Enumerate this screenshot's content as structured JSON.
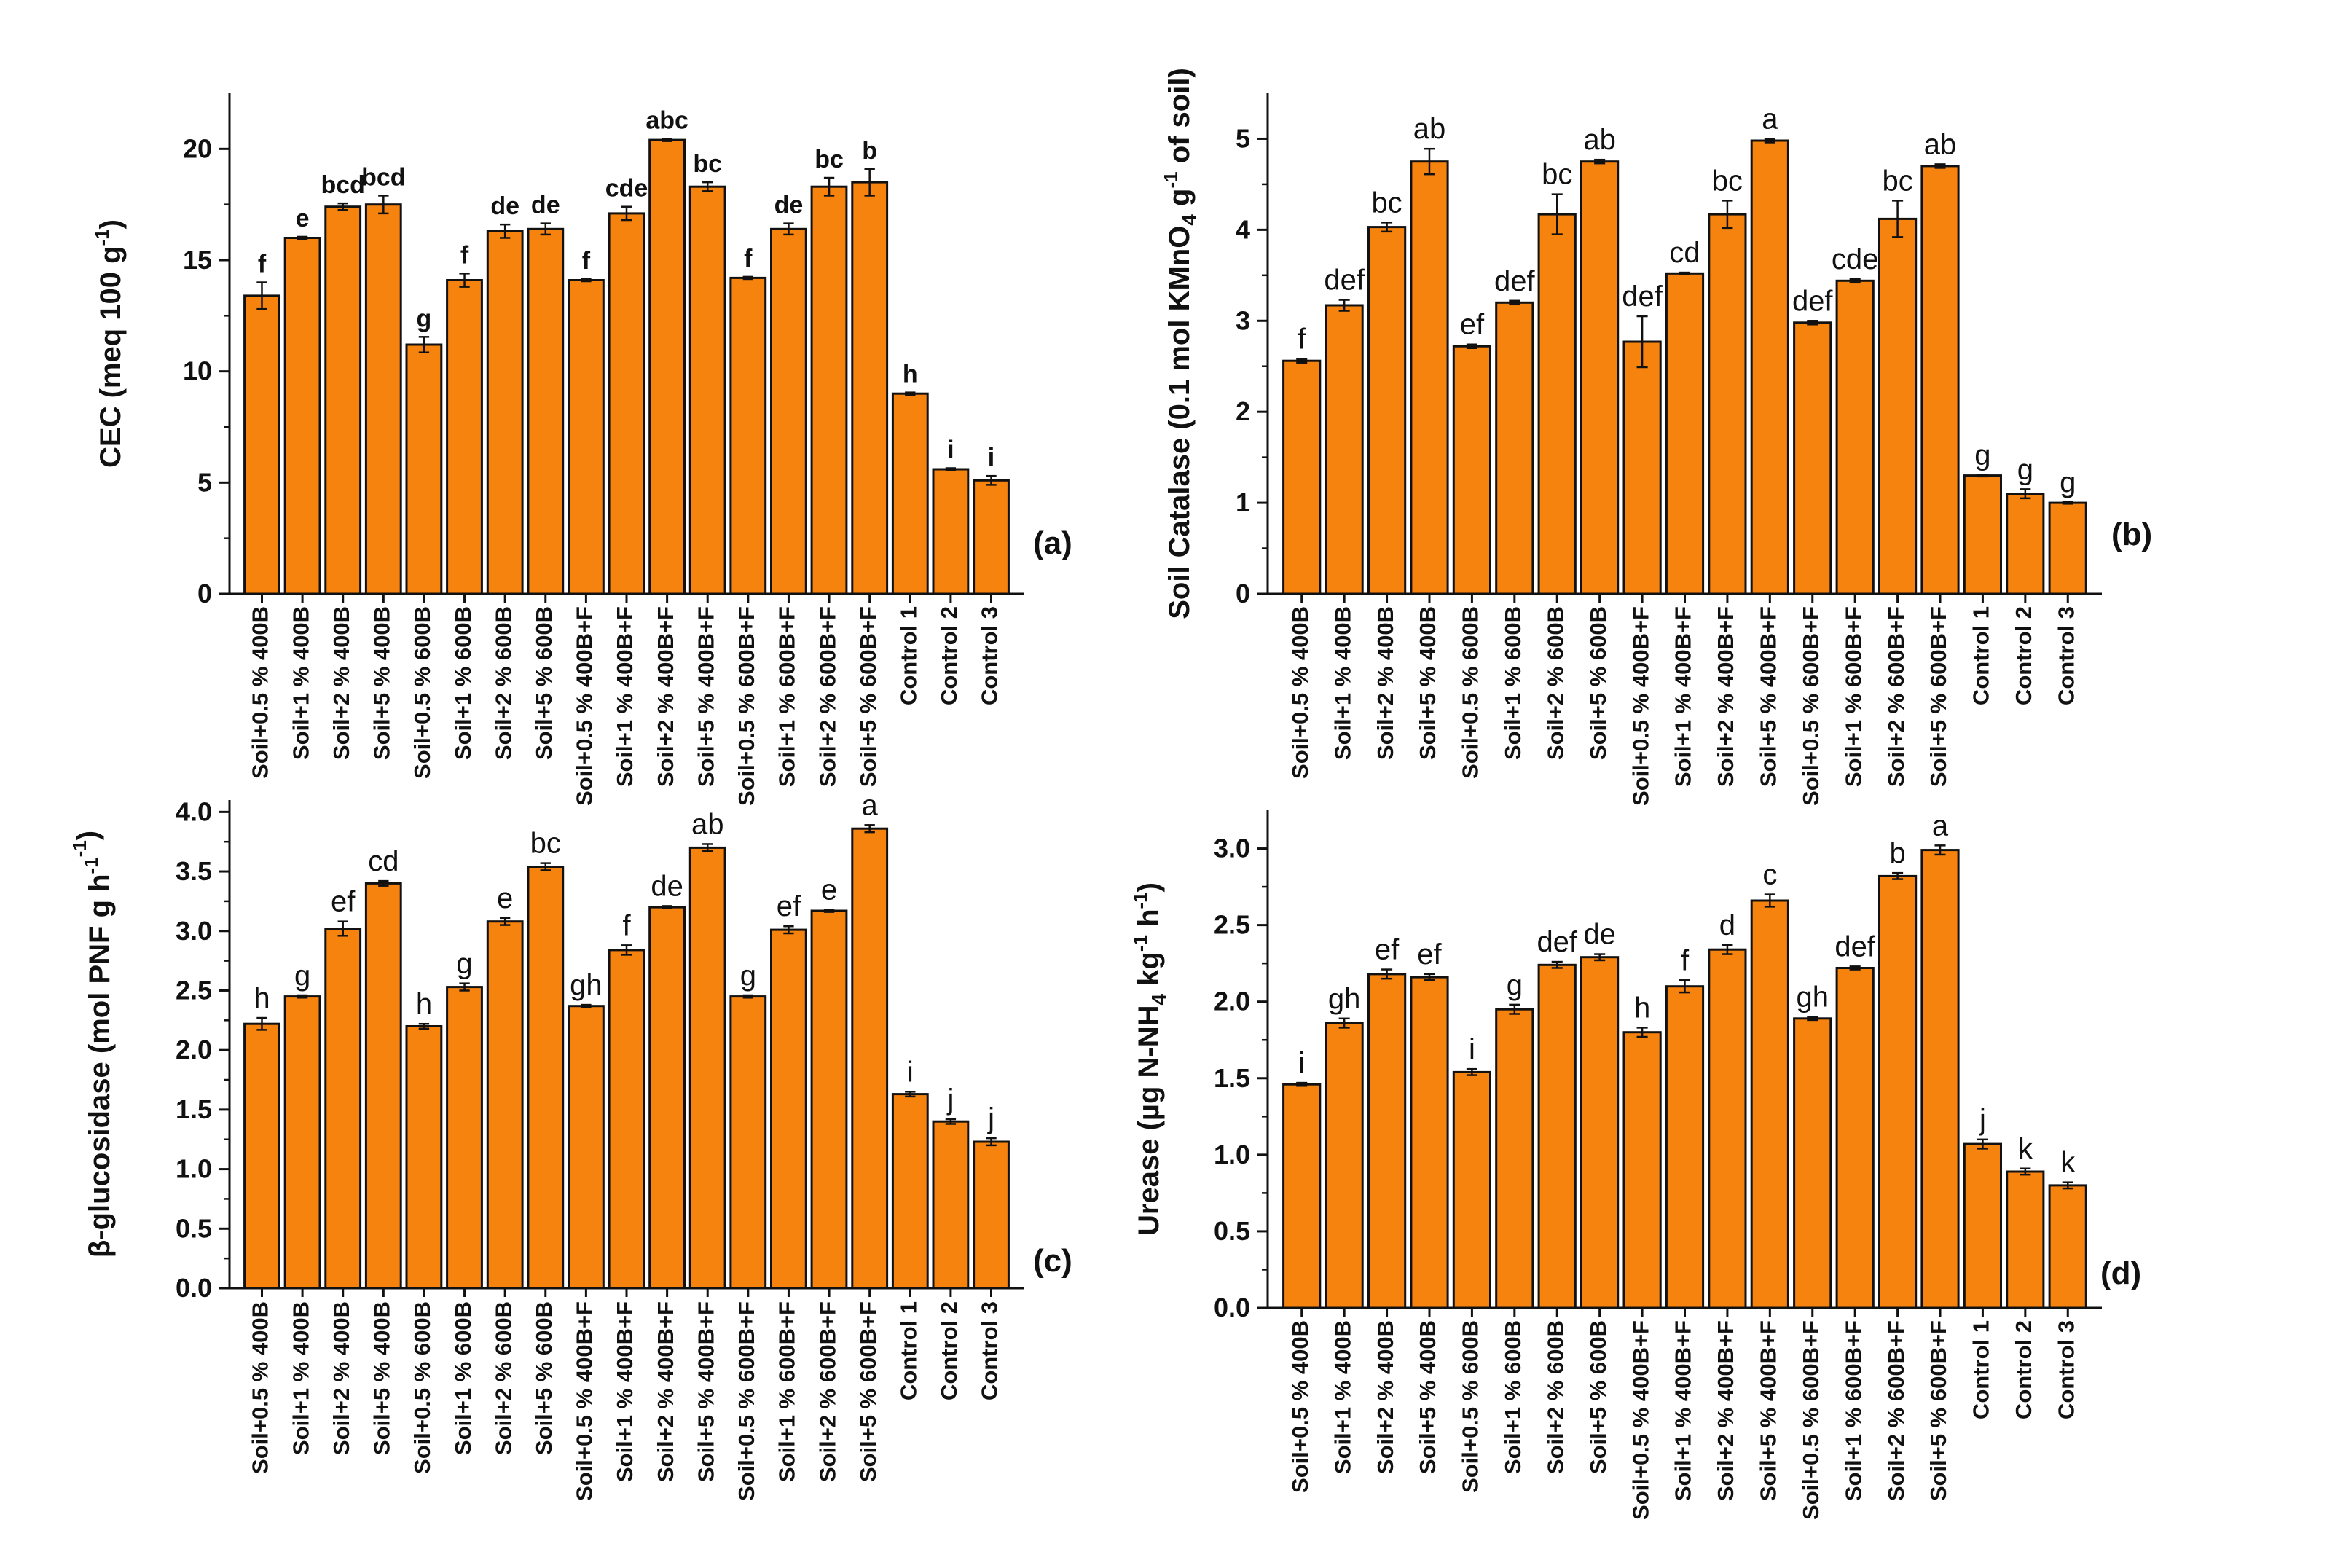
{
  "colors": {
    "bar_fill": "#F7830F",
    "bar_stroke": "#111111",
    "axis": "#111111",
    "background": "#ffffff"
  },
  "categories": [
    "Soil+0.5 % 400B",
    "Soil+1 % 400B",
    "Soil+2 % 400B",
    "Soil+5 % 400B",
    "Soil+0.5 % 600B",
    "Soil+1 % 600B",
    "Soil+2 % 600B",
    "Soil+5 % 600B",
    "Soil+0.5 % 400B+F",
    "Soil+1 % 400B+F",
    "Soil+2 % 400B+F",
    "Soil+5 % 400B+F",
    "Soil+0.5 % 600B+F",
    "Soil+1 % 600B+F",
    "Soil+2 % 600B+F",
    "Soil+5 % 600B+F",
    "Control 1",
    "Control 2",
    "Control 3"
  ],
  "chart_data": [
    {
      "id": "a",
      "panel_label": "(a)",
      "type": "bar",
      "ylabel_parts": {
        "pre": "CEC (meq 100 g",
        "sup": "-1",
        "post": ")"
      },
      "ylim": [
        0,
        22.5
      ],
      "yticks": [
        0,
        5,
        10,
        15,
        20
      ],
      "decimals": 0,
      "values": [
        13.4,
        16.0,
        17.4,
        17.5,
        11.2,
        14.1,
        16.3,
        16.4,
        14.1,
        17.1,
        20.4,
        18.3,
        14.2,
        16.4,
        18.3,
        18.5,
        9.0,
        5.6,
        5.1
      ],
      "errors": [
        0.6,
        0.05,
        0.15,
        0.4,
        0.35,
        0.3,
        0.3,
        0.25,
        0.05,
        0.3,
        0.05,
        0.2,
        0.05,
        0.25,
        0.4,
        0.6,
        0.05,
        0.05,
        0.2
      ],
      "significance": [
        "f",
        "e",
        "bcd",
        "bcd",
        "g",
        "f",
        "de",
        "de",
        "f",
        "cde",
        "abc",
        "bc",
        "f",
        "de",
        "bc",
        "b",
        "h",
        "i",
        "i"
      ],
      "bold_significance": true
    },
    {
      "id": "b",
      "panel_label": "(b)",
      "type": "bar",
      "ylabel_parts": {
        "pre": "Soil Catalase (0.1 mol KMnO",
        "sub": "4",
        "mid": " g",
        "sup": "-1",
        "post": " of soil)"
      },
      "ylim": [
        0,
        5.5
      ],
      "yticks": [
        0,
        1,
        2,
        3,
        4,
        5
      ],
      "decimals": 0,
      "values": [
        2.56,
        3.17,
        4.03,
        4.75,
        2.72,
        3.2,
        4.17,
        4.75,
        2.77,
        3.52,
        4.17,
        4.98,
        2.98,
        3.44,
        4.12,
        4.7,
        1.3,
        1.1,
        1.0
      ],
      "errors": [
        0.02,
        0.06,
        0.05,
        0.14,
        0.02,
        0.02,
        0.22,
        0.02,
        0.28,
        0.01,
        0.15,
        0.02,
        0.02,
        0.02,
        0.2,
        0.02,
        0.01,
        0.05,
        0.01
      ],
      "significance": [
        "f",
        "def",
        "bc",
        "ab",
        "ef",
        "def",
        "bc",
        "ab",
        "def",
        "cd",
        "bc",
        "a",
        "def",
        "cde",
        "bc",
        "ab",
        "g",
        "g",
        "g"
      ],
      "bold_significance": false
    },
    {
      "id": "c",
      "panel_label": "(c)",
      "type": "bar",
      "ylabel_parts": {
        "pre": "β-glucosidase (mol PNF g",
        "sup": "-1",
        "mid": " h",
        "sup2": "-1",
        "post": ")"
      },
      "ylim": [
        0,
        4.1
      ],
      "yticks": [
        0.0,
        0.5,
        1.0,
        1.5,
        2.0,
        2.5,
        3.0,
        3.5,
        4.0
      ],
      "decimals": 1,
      "values": [
        2.22,
        2.45,
        3.02,
        3.4,
        2.2,
        2.53,
        3.08,
        3.54,
        2.37,
        2.84,
        3.2,
        3.7,
        2.45,
        3.01,
        3.17,
        3.86,
        1.63,
        1.4,
        1.23
      ],
      "errors": [
        0.05,
        0.01,
        0.06,
        0.02,
        0.02,
        0.03,
        0.03,
        0.03,
        0.01,
        0.04,
        0.01,
        0.03,
        0.01,
        0.03,
        0.01,
        0.03,
        0.02,
        0.02,
        0.03
      ],
      "significance": [
        "h",
        "g",
        "ef",
        "cd",
        "h",
        "g",
        "e",
        "bc",
        "gh",
        "f",
        "de",
        "ab",
        "g",
        "ef",
        "e",
        "a",
        "i",
        "j",
        "j"
      ],
      "bold_significance": false
    },
    {
      "id": "d",
      "panel_label": "(d)",
      "type": "bar",
      "ylabel_parts": {
        "pre": "Urease (µg N-NH",
        "sub": "4",
        "mid": " kg",
        "sup": "-1",
        "mid2": " h",
        "sup2": "-1",
        "post": ")"
      },
      "ylim": [
        0,
        3.25
      ],
      "yticks": [
        0.0,
        0.5,
        1.0,
        1.5,
        2.0,
        2.5,
        3.0
      ],
      "decimals": 1,
      "values": [
        1.46,
        1.86,
        2.18,
        2.16,
        1.54,
        1.95,
        2.24,
        2.29,
        1.8,
        2.1,
        2.34,
        2.66,
        1.89,
        2.22,
        2.82,
        2.99,
        1.07,
        0.89,
        0.8
      ],
      "errors": [
        0.01,
        0.03,
        0.03,
        0.02,
        0.02,
        0.03,
        0.02,
        0.02,
        0.03,
        0.04,
        0.03,
        0.04,
        0.01,
        0.01,
        0.02,
        0.03,
        0.03,
        0.02,
        0.02
      ],
      "significance": [
        "i",
        "gh",
        "ef",
        "ef",
        "i",
        "g",
        "def",
        "de",
        "h",
        "f",
        "d",
        "c",
        "gh",
        "def",
        "b",
        "a",
        "j",
        "k",
        "k"
      ],
      "bold_significance": false
    }
  ]
}
